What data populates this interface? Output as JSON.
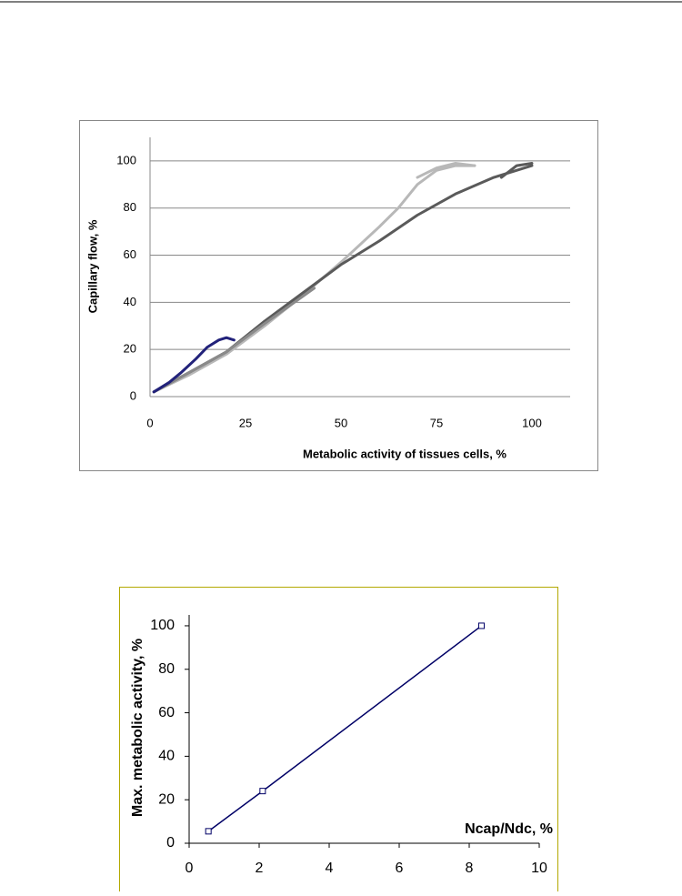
{
  "chart_data": [
    {
      "type": "line",
      "grid": true,
      "x_label": "Metabolic activity of tissues cells, %",
      "y_label": "Capillary flow, %",
      "xlim": [
        0,
        110
      ],
      "ylim": [
        0,
        110
      ],
      "xticks": [
        0,
        25,
        50,
        75,
        100
      ],
      "yticks": [
        0,
        20,
        40,
        60,
        80,
        100
      ],
      "series": [
        {
          "color": "#b8b8b8",
          "x": [
            1,
            10,
            20,
            30,
            40,
            50,
            60,
            65,
            70,
            75,
            80,
            85
          ],
          "values": [
            2,
            9,
            18,
            30,
            43,
            57,
            72,
            80,
            90,
            96,
            98,
            98
          ]
        },
        {
          "color": "#b8b8b8",
          "x": [
            70,
            75,
            80,
            85
          ],
          "values": [
            93,
            97,
            99,
            98
          ]
        },
        {
          "color": "#5a5a5a",
          "x": [
            1,
            10,
            20,
            30,
            40,
            50,
            60,
            70,
            80,
            90,
            100
          ],
          "values": [
            2,
            10,
            19,
            32,
            44,
            56,
            66,
            77,
            86,
            93,
            98
          ]
        },
        {
          "color": "#5a5a5a",
          "x": [
            92,
            96,
            100
          ],
          "values": [
            93,
            98,
            99
          ]
        },
        {
          "color": "#8a8a8a",
          "x": [
            1,
            10,
            20,
            30,
            43
          ],
          "values": [
            2,
            10,
            19,
            31,
            46
          ]
        },
        {
          "color": "#22227a",
          "x": [
            1,
            5,
            8,
            12,
            15,
            18,
            20,
            22
          ],
          "values": [
            2,
            6,
            10,
            16,
            21,
            24,
            25,
            24
          ]
        }
      ]
    },
    {
      "type": "line",
      "grid": false,
      "markers": true,
      "x_label": "Ncap/Ndc, %",
      "y_label": "Max. metabolic activity, %",
      "xlim": [
        0,
        10
      ],
      "ylim": [
        0,
        105
      ],
      "xticks": [
        0,
        2,
        4,
        6,
        8,
        10
      ],
      "yticks": [
        0,
        20,
        40,
        60,
        80,
        100
      ],
      "series": [
        {
          "color": "#000066",
          "x": [
            0.55,
            2.1,
            8.35
          ],
          "values": [
            5.5,
            24,
            100
          ]
        }
      ]
    }
  ]
}
